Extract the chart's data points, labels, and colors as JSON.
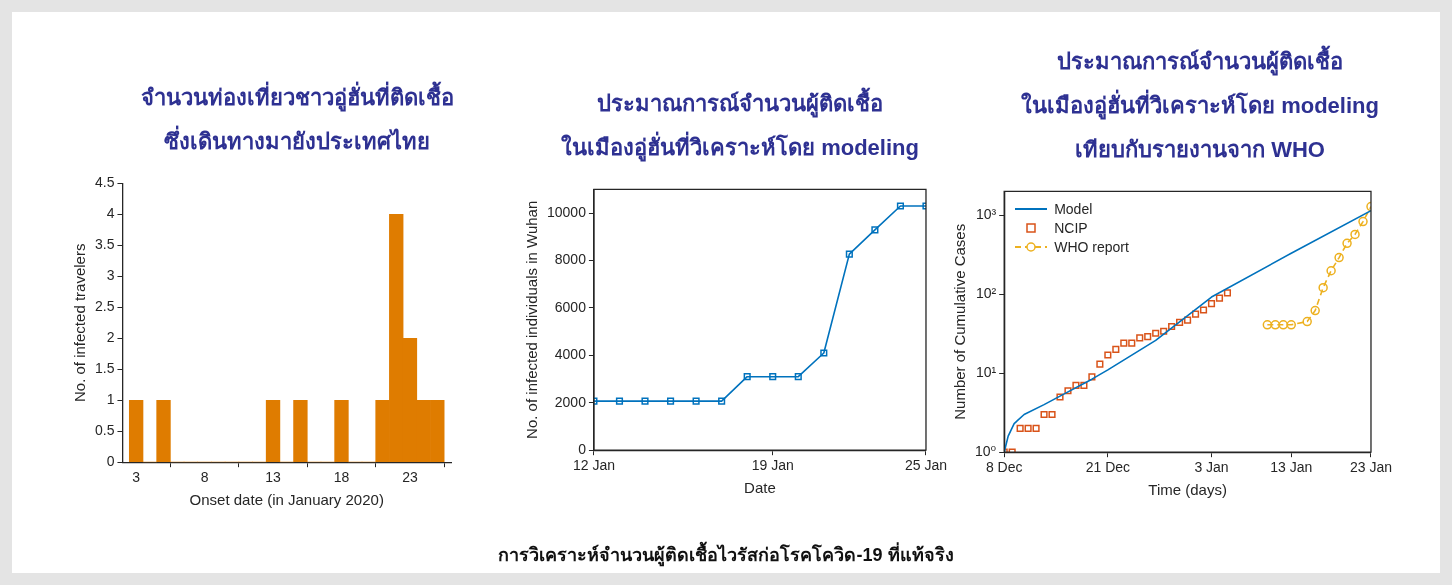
{
  "chart_data": [
    {
      "type": "histogram",
      "title": "จำนวนท่องเที่ยวชาวอู่ฮั่นที่ติดเชื้อ\nซึ่งเดินทางมายังประเทศไทย",
      "xlabel": "Onset date (in January 2020)",
      "ylabel": "No. of infected travelers",
      "bins": [
        2.5,
        3.5,
        4.5,
        5.5,
        6.5,
        7.5,
        8.5,
        9.5,
        10.5,
        11.5,
        12.5,
        13.5,
        14.5,
        15.5,
        16.5,
        17.5,
        18.5,
        19.5,
        20.5,
        21.5,
        22.5,
        23.5,
        24.5,
        25.5
      ],
      "values": [
        1,
        0,
        1,
        0,
        0,
        0,
        0,
        0,
        0,
        0,
        1,
        0,
        1,
        0,
        0,
        1,
        0,
        0,
        1,
        4,
        2,
        1,
        1
      ],
      "color": "#df7c00",
      "xlim": [
        2,
        26
      ],
      "xticks": [
        3,
        8,
        13,
        18,
        23
      ],
      "ylim": [
        0,
        4.5
      ],
      "yticks": [
        0,
        0.5,
        1,
        1.5,
        2,
        2.5,
        3,
        3.5,
        4,
        4.5
      ]
    },
    {
      "type": "line",
      "title": "ประมาณการณ์จำนวนผู้ติดเชื้อ\nในเมืองอู่ฮั่นที่วิเคราะห์โดย modeling",
      "xlabel": "Date",
      "ylabel": "No. of infected individuals in Wuhan",
      "x": [
        "2020-01-12",
        "2020-01-13",
        "2020-01-14",
        "2020-01-15",
        "2020-01-16",
        "2020-01-17",
        "2020-01-18",
        "2020-01-19",
        "2020-01-20",
        "2020-01-21",
        "2020-01-22",
        "2020-01-23",
        "2020-01-24",
        "2020-01-25"
      ],
      "values": [
        2070,
        2070,
        2070,
        2070,
        2070,
        2070,
        3100,
        3100,
        3100,
        4100,
        8270,
        9290,
        10300,
        10300
      ],
      "color": "#0072bd",
      "marker": "square",
      "xlim": [
        "2020-01-12",
        "2020-01-25"
      ],
      "xticks": [
        {
          "value": "2020-01-12",
          "label": "12 Jan"
        },
        {
          "value": "2020-01-19",
          "label": "19 Jan"
        },
        {
          "value": "2020-01-25",
          "label": "25 Jan"
        }
      ],
      "ylim": [
        0,
        11000
      ],
      "yticks": [
        0,
        2000,
        4000,
        6000,
        8000,
        10000
      ],
      "annotations": [
        "การวิเคราะห์จำนวนผู้ติดเชื้อไวรัสก่อโรคโควิด-19 ที่แท้จริง"
      ]
    },
    {
      "type": "line",
      "title": "ประมาณการณ์จำนวนผู้ติดเชื้อ\nในเมืองอู่ฮั่นที่วิเคราะห์โดย modeling\nเทียบกับรายงานจาก WHO",
      "xlabel": "Time (days)",
      "ylabel": "Number of Cumulative Cases",
      "log": "y",
      "legend": "top left",
      "xlim": [
        "2019-12-08",
        "2020-01-23"
      ],
      "xticks": [
        {
          "value": "2019-12-08",
          "label": "8 Dec"
        },
        {
          "value": "2019-12-21",
          "label": "21 Dec"
        },
        {
          "value": "2020-01-03",
          "label": "3 Jan"
        },
        {
          "value": "2020-01-13",
          "label": "13 Jan"
        },
        {
          "value": "2020-01-23",
          "label": "23 Jan"
        }
      ],
      "ylim": [
        1,
        2000
      ],
      "yticks": [
        {
          "value": 1,
          "label": "10⁰"
        },
        {
          "value": 10,
          "label": "10¹"
        },
        {
          "value": 100,
          "label": "10²"
        },
        {
          "value": 1000,
          "label": "10³"
        }
      ],
      "series": [
        {
          "name": "Model",
          "type": "line",
          "color": "#0072bd",
          "marker": "none",
          "line_style": "solid",
          "x": [
            "2019-12-08",
            "2019-12-08T12:00",
            "2019-12-09T06:00",
            "2019-12-10T12:00",
            "2019-12-13",
            "2019-12-16",
            "2019-12-19",
            "2019-12-21",
            "2019-12-27",
            "2020-01-03",
            "2020-01-13",
            "2020-01-23"
          ],
          "values": [
            1,
            1.6,
            2.3,
            3,
            4,
            5.8,
            8.4,
            11,
            26,
            92,
            330,
            1140
          ]
        },
        {
          "name": "NCIP",
          "type": "scatter",
          "color": "#d95319",
          "marker": "square",
          "x": [
            "2019-12-08",
            "2019-12-09",
            "2019-12-10",
            "2019-12-11",
            "2019-12-12",
            "2019-12-13",
            "2019-12-14",
            "2019-12-15",
            "2019-12-16",
            "2019-12-17",
            "2019-12-18",
            "2019-12-19",
            "2019-12-20",
            "2019-12-21",
            "2019-12-22",
            "2019-12-23",
            "2019-12-24",
            "2019-12-25",
            "2019-12-26",
            "2019-12-27",
            "2019-12-28",
            "2019-12-29",
            "2019-12-30",
            "2019-12-31",
            "2020-01-01",
            "2020-01-02",
            "2020-01-03",
            "2020-01-04",
            "2020-01-05"
          ],
          "values": [
            1,
            1,
            2,
            2,
            2,
            3,
            3,
            5,
            6,
            7,
            7,
            9,
            13,
            17,
            20,
            24,
            24,
            28,
            29,
            32,
            34,
            39,
            44,
            47,
            56,
            63,
            76,
            89,
            104
          ]
        },
        {
          "name": "WHO report",
          "type": "line",
          "color": "#edb120",
          "marker": "circle",
          "line_style": "dashed",
          "x": [
            "2020-01-10",
            "2020-01-11",
            "2020-01-12",
            "2020-01-13",
            "2020-01-15",
            "2020-01-16",
            "2020-01-17",
            "2020-01-18",
            "2020-01-19",
            "2020-01-20",
            "2020-01-21",
            "2020-01-22",
            "2020-01-23"
          ],
          "values": [
            41,
            41,
            41,
            41,
            45,
            62,
            121,
            198,
            291,
            440,
            571,
            830,
            1287
          ]
        }
      ]
    }
  ]
}
